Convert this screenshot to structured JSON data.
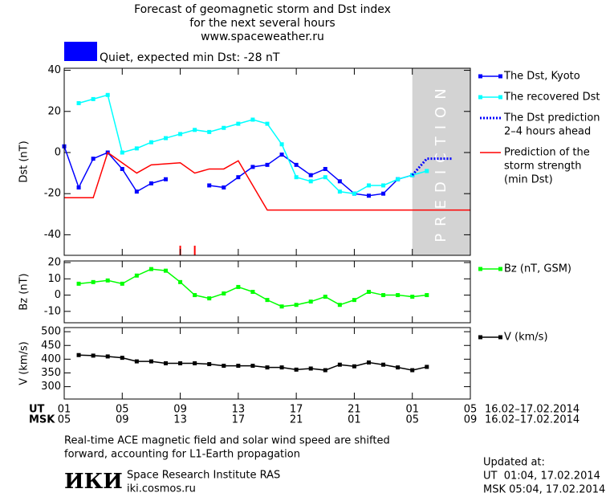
{
  "title": [
    "Forecast of geomagnetic storm and Dst index",
    "for the next several hours",
    "www.spaceweather.ru"
  ],
  "status": {
    "text": "Quiet, expected min Dst: -28 nT",
    "color": "#0000ff"
  },
  "chart_data": [
    {
      "type": "line",
      "ylabel": "Dst (nT)",
      "xlim": [
        0,
        28
      ],
      "ylim": [
        -50,
        41
      ],
      "yticks": [
        40,
        20,
        0,
        -20,
        -40
      ],
      "prediction_zone": {
        "x": [
          24,
          28
        ],
        "label": "PREDICTION",
        "color": "#d3d3d3"
      },
      "gap_marks_x": [
        8,
        9
      ],
      "gap_color": "#ff0000",
      "series": [
        {
          "name": [
            "The Dst, Kyoto"
          ],
          "color": "#0000ff",
          "markers": true,
          "dotted": false,
          "x": [
            0,
            1,
            2,
            3,
            4,
            5,
            6,
            7,
            8,
            9,
            10,
            11,
            12,
            13,
            14,
            15,
            16,
            17,
            18,
            19,
            20,
            21,
            22,
            23,
            24
          ],
          "values": [
            3,
            -17,
            -3,
            0,
            -8,
            -19,
            -15,
            -13,
            null,
            null,
            -16,
            -17,
            -12,
            -7,
            -6,
            -1,
            -6,
            -11,
            -8,
            -14,
            -20,
            -21,
            -20,
            -13,
            -11
          ]
        },
        {
          "name": [
            "The recovered Dst"
          ],
          "color": "#00ffff",
          "markers": true,
          "dotted": false,
          "x": [
            1,
            2,
            3,
            4,
            5,
            6,
            7,
            8,
            9,
            10,
            11,
            12,
            13,
            14,
            15,
            16,
            17,
            18,
            19,
            20,
            21,
            22,
            23,
            24,
            25
          ],
          "values": [
            24,
            26,
            28,
            0,
            2,
            5,
            7,
            9,
            11,
            10,
            12,
            14,
            16,
            14,
            4,
            -12,
            -14,
            -12,
            -19,
            -20,
            -16,
            -16,
            -13,
            -11,
            -9
          ]
        },
        {
          "name": [
            "The Dst prediction",
            "2–4 hours ahead"
          ],
          "color": "#0000ff",
          "markers": false,
          "dotted": true,
          "x": [
            24,
            25,
            26.8
          ],
          "values": [
            -11,
            -3,
            -3
          ]
        },
        {
          "name": [
            "Prediction of the",
            "storm strength",
            "(min Dst)"
          ],
          "color": "#ff0000",
          "markers": false,
          "dotted": false,
          "x": [
            0,
            2,
            3,
            5,
            6,
            8,
            9,
            10,
            11,
            12,
            14,
            28
          ],
          "values": [
            -22,
            -22,
            0,
            -10,
            -6,
            -5,
            -10,
            -8,
            -8,
            -4,
            -28,
            -28
          ]
        }
      ]
    },
    {
      "type": "line",
      "ylabel": "Bz (nT)",
      "xlim": [
        0,
        28
      ],
      "ylim": [
        -17,
        21
      ],
      "yticks": [
        20,
        10,
        0,
        -10
      ],
      "series": [
        {
          "name": [
            "Bz (nT, GSM)"
          ],
          "color": "#00ff00",
          "markers": true,
          "dotted": false,
          "x": [
            1,
            2,
            3,
            4,
            5,
            6,
            7,
            8,
            9,
            10,
            11,
            12,
            13,
            14,
            15,
            16,
            17,
            18,
            19,
            20,
            21,
            22,
            23,
            24,
            25
          ],
          "values": [
            7,
            8,
            9,
            7,
            12,
            16,
            15,
            8,
            0,
            -2,
            1,
            5,
            2,
            -3,
            -7,
            -6,
            -4,
            -1,
            -6,
            -3,
            2,
            0,
            0,
            -1,
            0
          ]
        }
      ]
    },
    {
      "type": "line",
      "ylabel": "V (km/s)",
      "xlim": [
        0,
        28
      ],
      "ylim": [
        255,
        515
      ],
      "yticks": [
        500,
        450,
        400,
        350,
        300
      ],
      "series": [
        {
          "name": [
            "V (km/s)"
          ],
          "color": "#000000",
          "markers": true,
          "dotted": false,
          "x": [
            1,
            2,
            3,
            4,
            5,
            6,
            7,
            8,
            9,
            10,
            11,
            12,
            13,
            14,
            15,
            16,
            17,
            18,
            19,
            20,
            21,
            22,
            23,
            24,
            25
          ],
          "values": [
            415,
            413,
            410,
            405,
            392,
            392,
            385,
            385,
            385,
            382,
            376,
            376,
            376,
            370,
            370,
            362,
            366,
            360,
            380,
            374,
            388,
            380,
            370,
            360,
            372
          ]
        }
      ],
      "x_rows": [
        {
          "label": "UT",
          "range": "16.02–17.02.2014",
          "ticks": [
            {
              "value": 0,
              "label": "01"
            },
            {
              "value": 4,
              "label": "05"
            },
            {
              "value": 8,
              "label": "09"
            },
            {
              "value": 12,
              "label": "13"
            },
            {
              "value": 16,
              "label": "17"
            },
            {
              "value": 20,
              "label": "21"
            },
            {
              "value": 24,
              "label": "01"
            },
            {
              "value": 28,
              "label": "05"
            }
          ]
        },
        {
          "label": "MSK",
          "range": "16.02–17.02.2014",
          "ticks": [
            {
              "value": 0,
              "label": "05"
            },
            {
              "value": 4,
              "label": "09"
            },
            {
              "value": 8,
              "label": "13"
            },
            {
              "value": 12,
              "label": "17"
            },
            {
              "value": 16,
              "label": "21"
            },
            {
              "value": 20,
              "label": "01"
            },
            {
              "value": 24,
              "label": "05"
            },
            {
              "value": 28,
              "label": "09"
            }
          ]
        }
      ]
    }
  ],
  "note": [
    "Real-time ACE magnetic field and solar wind speed are shifted",
    "forward, accounting for L1-Earth propagation"
  ],
  "institute": {
    "logo": "ИКИ",
    "name": "Space Research Institute RAS",
    "url": "iki.cosmos.ru"
  },
  "updated": {
    "label": "Updated at:",
    "ut": "UT  01:04, 17.02.2014",
    "msk": "MSK 05:04, 17.02.2014"
  }
}
